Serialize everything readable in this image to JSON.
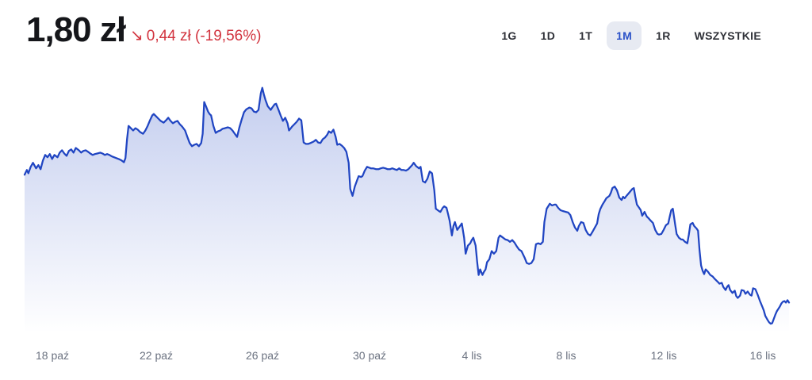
{
  "header": {
    "price": "1,80 zł",
    "change_arrow": "↘",
    "change_text": "0,44 zł (-19,56%)",
    "change_color": "#d2333e"
  },
  "ranges": {
    "active": "1M",
    "options": [
      {
        "label": "1G"
      },
      {
        "label": "1D"
      },
      {
        "label": "1T"
      },
      {
        "label": "1M"
      },
      {
        "label": "1R"
      },
      {
        "label": "WSZYSTKIE"
      }
    ]
  },
  "chart_data": {
    "type": "area",
    "title": "Stock price, 1 month",
    "unit": "zł",
    "current_price": 1.8,
    "change_value": -0.44,
    "change_percent": -19.56,
    "ylim": [
      1.7,
      2.56
    ],
    "grid": false,
    "legend": false,
    "line_color": "#2045c2",
    "fill_top_color": "rgba(32,69,194,0.27)",
    "fill_bottom_color": "rgba(32,69,194,0)",
    "x_ticks": [
      {
        "label": "18 paź",
        "t": 0.036
      },
      {
        "label": "22 paź",
        "t": 0.172
      },
      {
        "label": "26 paź",
        "t": 0.311
      },
      {
        "label": "30 paź",
        "t": 0.451
      },
      {
        "label": "4 lis",
        "t": 0.585
      },
      {
        "label": "8 lis",
        "t": 0.708
      },
      {
        "label": "12 lis",
        "t": 0.836
      },
      {
        "label": "16 lis",
        "t": 0.966
      }
    ],
    "points": [
      [
        0.0,
        2.24
      ],
      [
        0.003,
        2.256
      ],
      [
        0.005,
        2.245
      ],
      [
        0.008,
        2.267
      ],
      [
        0.011,
        2.281
      ],
      [
        0.015,
        2.262
      ],
      [
        0.018,
        2.273
      ],
      [
        0.021,
        2.259
      ],
      [
        0.024,
        2.289
      ],
      [
        0.027,
        2.308
      ],
      [
        0.03,
        2.3
      ],
      [
        0.033,
        2.311
      ],
      [
        0.036,
        2.294
      ],
      [
        0.039,
        2.308
      ],
      [
        0.043,
        2.3
      ],
      [
        0.046,
        2.316
      ],
      [
        0.049,
        2.324
      ],
      [
        0.052,
        2.313
      ],
      [
        0.055,
        2.305
      ],
      [
        0.058,
        2.322
      ],
      [
        0.061,
        2.327
      ],
      [
        0.064,
        2.316
      ],
      [
        0.067,
        2.332
      ],
      [
        0.071,
        2.324
      ],
      [
        0.074,
        2.316
      ],
      [
        0.077,
        2.322
      ],
      [
        0.08,
        2.324
      ],
      [
        0.083,
        2.319
      ],
      [
        0.086,
        2.313
      ],
      [
        0.089,
        2.308
      ],
      [
        0.092,
        2.311
      ],
      [
        0.095,
        2.313
      ],
      [
        0.099,
        2.316
      ],
      [
        0.102,
        2.313
      ],
      [
        0.105,
        2.308
      ],
      [
        0.108,
        2.311
      ],
      [
        0.111,
        2.308
      ],
      [
        0.114,
        2.303
      ],
      [
        0.117,
        2.3
      ],
      [
        0.12,
        2.297
      ],
      [
        0.123,
        2.294
      ],
      [
        0.127,
        2.289
      ],
      [
        0.13,
        2.283
      ],
      [
        0.132,
        2.297
      ],
      [
        0.134,
        2.362
      ],
      [
        0.136,
        2.408
      ],
      [
        0.139,
        2.4
      ],
      [
        0.142,
        2.392
      ],
      [
        0.145,
        2.4
      ],
      [
        0.148,
        2.395
      ],
      [
        0.151,
        2.387
      ],
      [
        0.155,
        2.381
      ],
      [
        0.158,
        2.392
      ],
      [
        0.161,
        2.408
      ],
      [
        0.164,
        2.427
      ],
      [
        0.167,
        2.444
      ],
      [
        0.169,
        2.449
      ],
      [
        0.172,
        2.441
      ],
      [
        0.175,
        2.433
      ],
      [
        0.178,
        2.425
      ],
      [
        0.182,
        2.419
      ],
      [
        0.185,
        2.427
      ],
      [
        0.188,
        2.436
      ],
      [
        0.191,
        2.425
      ],
      [
        0.194,
        2.417
      ],
      [
        0.197,
        2.422
      ],
      [
        0.2,
        2.425
      ],
      [
        0.203,
        2.414
      ],
      [
        0.206,
        2.406
      ],
      [
        0.21,
        2.392
      ],
      [
        0.213,
        2.37
      ],
      [
        0.216,
        2.349
      ],
      [
        0.219,
        2.338
      ],
      [
        0.222,
        2.343
      ],
      [
        0.225,
        2.346
      ],
      [
        0.228,
        2.338
      ],
      [
        0.231,
        2.349
      ],
      [
        0.233,
        2.381
      ],
      [
        0.235,
        2.49
      ],
      [
        0.238,
        2.471
      ],
      [
        0.24,
        2.457
      ],
      [
        0.242,
        2.449
      ],
      [
        0.244,
        2.444
      ],
      [
        0.247,
        2.408
      ],
      [
        0.25,
        2.384
      ],
      [
        0.253,
        2.389
      ],
      [
        0.256,
        2.392
      ],
      [
        0.259,
        2.398
      ],
      [
        0.262,
        2.4
      ],
      [
        0.266,
        2.403
      ],
      [
        0.269,
        2.4
      ],
      [
        0.272,
        2.392
      ],
      [
        0.275,
        2.381
      ],
      [
        0.278,
        2.37
      ],
      [
        0.281,
        2.403
      ],
      [
        0.284,
        2.43
      ],
      [
        0.287,
        2.455
      ],
      [
        0.29,
        2.465
      ],
      [
        0.294,
        2.471
      ],
      [
        0.297,
        2.468
      ],
      [
        0.3,
        2.457
      ],
      [
        0.303,
        2.455
      ],
      [
        0.306,
        2.463
      ],
      [
        0.309,
        2.52
      ],
      [
        0.311,
        2.539
      ],
      [
        0.313,
        2.517
      ],
      [
        0.315,
        2.498
      ],
      [
        0.318,
        2.476
      ],
      [
        0.322,
        2.463
      ],
      [
        0.324,
        2.471
      ],
      [
        0.327,
        2.482
      ],
      [
        0.329,
        2.484
      ],
      [
        0.332,
        2.465
      ],
      [
        0.335,
        2.444
      ],
      [
        0.338,
        2.425
      ],
      [
        0.341,
        2.436
      ],
      [
        0.344,
        2.417
      ],
      [
        0.346,
        2.392
      ],
      [
        0.35,
        2.406
      ],
      [
        0.353,
        2.414
      ],
      [
        0.356,
        2.422
      ],
      [
        0.359,
        2.433
      ],
      [
        0.362,
        2.427
      ],
      [
        0.365,
        2.351
      ],
      [
        0.368,
        2.346
      ],
      [
        0.371,
        2.346
      ],
      [
        0.374,
        2.349
      ],
      [
        0.378,
        2.354
      ],
      [
        0.381,
        2.36
      ],
      [
        0.384,
        2.351
      ],
      [
        0.387,
        2.349
      ],
      [
        0.39,
        2.362
      ],
      [
        0.393,
        2.368
      ],
      [
        0.396,
        2.378
      ],
      [
        0.398,
        2.389
      ],
      [
        0.401,
        2.384
      ],
      [
        0.404,
        2.395
      ],
      [
        0.407,
        2.37
      ],
      [
        0.409,
        2.343
      ],
      [
        0.412,
        2.346
      ],
      [
        0.415,
        2.34
      ],
      [
        0.418,
        2.332
      ],
      [
        0.421,
        2.319
      ],
      [
        0.424,
        2.281
      ],
      [
        0.426,
        2.191
      ],
      [
        0.429,
        2.167
      ],
      [
        0.432,
        2.199
      ],
      [
        0.435,
        2.221
      ],
      [
        0.437,
        2.235
      ],
      [
        0.44,
        2.232
      ],
      [
        0.442,
        2.235
      ],
      [
        0.445,
        2.254
      ],
      [
        0.448,
        2.267
      ],
      [
        0.451,
        2.264
      ],
      [
        0.453,
        2.262
      ],
      [
        0.456,
        2.262
      ],
      [
        0.46,
        2.259
      ],
      [
        0.463,
        2.259
      ],
      [
        0.466,
        2.262
      ],
      [
        0.469,
        2.264
      ],
      [
        0.472,
        2.262
      ],
      [
        0.475,
        2.259
      ],
      [
        0.478,
        2.259
      ],
      [
        0.481,
        2.262
      ],
      [
        0.484,
        2.259
      ],
      [
        0.487,
        2.256
      ],
      [
        0.49,
        2.262
      ],
      [
        0.493,
        2.256
      ],
      [
        0.496,
        2.256
      ],
      [
        0.499,
        2.254
      ],
      [
        0.502,
        2.259
      ],
      [
        0.507,
        2.273
      ],
      [
        0.509,
        2.281
      ],
      [
        0.512,
        2.27
      ],
      [
        0.516,
        2.262
      ],
      [
        0.518,
        2.267
      ],
      [
        0.521,
        2.218
      ],
      [
        0.524,
        2.213
      ],
      [
        0.527,
        2.226
      ],
      [
        0.53,
        2.251
      ],
      [
        0.533,
        2.245
      ],
      [
        0.536,
        2.186
      ],
      [
        0.538,
        2.123
      ],
      [
        0.542,
        2.115
      ],
      [
        0.544,
        2.112
      ],
      [
        0.547,
        2.126
      ],
      [
        0.549,
        2.131
      ],
      [
        0.552,
        2.126
      ],
      [
        0.554,
        2.104
      ],
      [
        0.556,
        2.082
      ],
      [
        0.559,
        2.031
      ],
      [
        0.561,
        2.063
      ],
      [
        0.563,
        2.077
      ],
      [
        0.566,
        2.05
      ],
      [
        0.569,
        2.061
      ],
      [
        0.572,
        2.072
      ],
      [
        0.575,
        2.023
      ],
      [
        0.577,
        1.968
      ],
      [
        0.58,
        1.996
      ],
      [
        0.583,
        2.004
      ],
      [
        0.585,
        2.015
      ],
      [
        0.587,
        2.023
      ],
      [
        0.59,
        1.996
      ],
      [
        0.592,
        1.941
      ],
      [
        0.594,
        1.895
      ],
      [
        0.596,
        1.914
      ],
      [
        0.599,
        1.895
      ],
      [
        0.601,
        1.906
      ],
      [
        0.603,
        1.914
      ],
      [
        0.605,
        1.939
      ],
      [
        0.608,
        1.949
      ],
      [
        0.611,
        1.977
      ],
      [
        0.614,
        1.968
      ],
      [
        0.617,
        1.977
      ],
      [
        0.62,
        2.023
      ],
      [
        0.622,
        2.031
      ],
      [
        0.626,
        2.023
      ],
      [
        0.629,
        2.017
      ],
      [
        0.632,
        2.015
      ],
      [
        0.635,
        2.009
      ],
      [
        0.638,
        2.015
      ],
      [
        0.641,
        2.006
      ],
      [
        0.644,
        1.993
      ],
      [
        0.647,
        1.982
      ],
      [
        0.65,
        1.977
      ],
      [
        0.654,
        1.955
      ],
      [
        0.657,
        1.936
      ],
      [
        0.66,
        1.933
      ],
      [
        0.663,
        1.936
      ],
      [
        0.666,
        1.949
      ],
      [
        0.669,
        2.001
      ],
      [
        0.672,
        2.004
      ],
      [
        0.675,
        2.001
      ],
      [
        0.678,
        2.009
      ],
      [
        0.68,
        2.077
      ],
      [
        0.683,
        2.123
      ],
      [
        0.685,
        2.131
      ],
      [
        0.687,
        2.14
      ],
      [
        0.69,
        2.134
      ],
      [
        0.693,
        2.137
      ],
      [
        0.695,
        2.137
      ],
      [
        0.698,
        2.126
      ],
      [
        0.701,
        2.118
      ],
      [
        0.704,
        2.115
      ],
      [
        0.708,
        2.112
      ],
      [
        0.711,
        2.11
      ],
      [
        0.714,
        2.101
      ],
      [
        0.717,
        2.077
      ],
      [
        0.72,
        2.058
      ],
      [
        0.723,
        2.047
      ],
      [
        0.725,
        2.063
      ],
      [
        0.728,
        2.077
      ],
      [
        0.731,
        2.074
      ],
      [
        0.734,
        2.05
      ],
      [
        0.737,
        2.036
      ],
      [
        0.74,
        2.031
      ],
      [
        0.743,
        2.044
      ],
      [
        0.746,
        2.058
      ],
      [
        0.749,
        2.072
      ],
      [
        0.751,
        2.104
      ],
      [
        0.753,
        2.121
      ],
      [
        0.756,
        2.137
      ],
      [
        0.759,
        2.15
      ],
      [
        0.761,
        2.159
      ],
      [
        0.765,
        2.167
      ],
      [
        0.767,
        2.178
      ],
      [
        0.769,
        2.194
      ],
      [
        0.772,
        2.199
      ],
      [
        0.775,
        2.186
      ],
      [
        0.778,
        2.161
      ],
      [
        0.781,
        2.153
      ],
      [
        0.783,
        2.164
      ],
      [
        0.785,
        2.159
      ],
      [
        0.788,
        2.169
      ],
      [
        0.791,
        2.178
      ],
      [
        0.795,
        2.191
      ],
      [
        0.797,
        2.194
      ],
      [
        0.799,
        2.164
      ],
      [
        0.801,
        2.137
      ],
      [
        0.804,
        2.126
      ],
      [
        0.806,
        2.118
      ],
      [
        0.808,
        2.099
      ],
      [
        0.811,
        2.112
      ],
      [
        0.814,
        2.096
      ],
      [
        0.816,
        2.091
      ],
      [
        0.819,
        2.082
      ],
      [
        0.822,
        2.074
      ],
      [
        0.825,
        2.05
      ],
      [
        0.828,
        2.036
      ],
      [
        0.83,
        2.034
      ],
      [
        0.833,
        2.036
      ],
      [
        0.836,
        2.05
      ],
      [
        0.839,
        2.066
      ],
      [
        0.842,
        2.072
      ],
      [
        0.844,
        2.096
      ],
      [
        0.846,
        2.118
      ],
      [
        0.848,
        2.123
      ],
      [
        0.851,
        2.069
      ],
      [
        0.853,
        2.036
      ],
      [
        0.856,
        2.023
      ],
      [
        0.859,
        2.017
      ],
      [
        0.861,
        2.017
      ],
      [
        0.864,
        2.009
      ],
      [
        0.867,
        2.004
      ],
      [
        0.869,
        2.034
      ],
      [
        0.871,
        2.069
      ],
      [
        0.874,
        2.074
      ],
      [
        0.876,
        2.063
      ],
      [
        0.879,
        2.055
      ],
      [
        0.881,
        2.047
      ],
      [
        0.883,
        1.979
      ],
      [
        0.885,
        1.928
      ],
      [
        0.887,
        1.909
      ],
      [
        0.889,
        1.898
      ],
      [
        0.891,
        1.914
      ],
      [
        0.894,
        1.906
      ],
      [
        0.897,
        1.895
      ],
      [
        0.9,
        1.89
      ],
      [
        0.903,
        1.881
      ],
      [
        0.907,
        1.871
      ],
      [
        0.909,
        1.865
      ],
      [
        0.912,
        1.868
      ],
      [
        0.914,
        1.854
      ],
      [
        0.917,
        1.843
      ],
      [
        0.919,
        1.854
      ],
      [
        0.921,
        1.86
      ],
      [
        0.923,
        1.843
      ],
      [
        0.926,
        1.833
      ],
      [
        0.929,
        1.841
      ],
      [
        0.931,
        1.822
      ],
      [
        0.933,
        1.816
      ],
      [
        0.936,
        1.824
      ],
      [
        0.938,
        1.843
      ],
      [
        0.941,
        1.841
      ],
      [
        0.943,
        1.83
      ],
      [
        0.946,
        1.838
      ],
      [
        0.949,
        1.827
      ],
      [
        0.951,
        1.824
      ],
      [
        0.953,
        1.849
      ],
      [
        0.956,
        1.846
      ],
      [
        0.959,
        1.827
      ],
      [
        0.962,
        1.805
      ],
      [
        0.965,
        1.786
      ],
      [
        0.967,
        1.773
      ],
      [
        0.969,
        1.754
      ],
      [
        0.972,
        1.74
      ],
      [
        0.974,
        1.732
      ],
      [
        0.976,
        1.727
      ],
      [
        0.978,
        1.729
      ],
      [
        0.98,
        1.743
      ],
      [
        0.982,
        1.757
      ],
      [
        0.984,
        1.77
      ],
      [
        0.988,
        1.786
      ],
      [
        0.99,
        1.797
      ],
      [
        0.992,
        1.803
      ],
      [
        0.994,
        1.805
      ],
      [
        0.996,
        1.8
      ],
      [
        0.998,
        1.808
      ],
      [
        1.0,
        1.8
      ]
    ]
  }
}
